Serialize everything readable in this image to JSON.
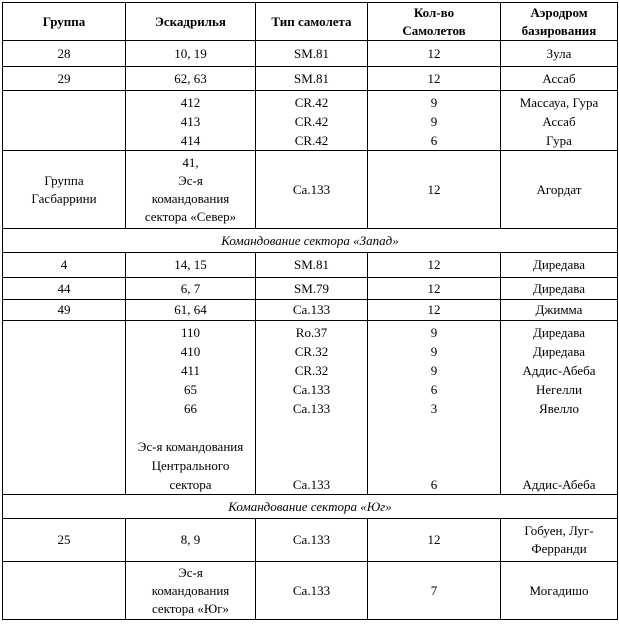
{
  "headers": [
    "Группа",
    "Эскадрилья",
    "Тип самолета",
    "Кол-во\nСамолетов",
    "Аэродром\nбазирования"
  ],
  "rows": [
    {
      "type": "data",
      "h": 26,
      "cells": [
        [
          "28"
        ],
        [
          "10, 19"
        ],
        [
          "SM.81"
        ],
        [
          "12"
        ],
        [
          "Зула"
        ]
      ]
    },
    {
      "type": "data",
      "h": 24,
      "cells": [
        [
          "29"
        ],
        [
          "62, 63"
        ],
        [
          "SM.81"
        ],
        [
          "12"
        ],
        [
          "Ассаб"
        ]
      ]
    },
    {
      "type": "block",
      "h": 60,
      "cells": [
        [
          ""
        ],
        [
          "412",
          "413",
          "414"
        ],
        [
          "CR.42",
          "CR.42",
          "CR.42"
        ],
        [
          "9",
          "9",
          "6"
        ],
        [
          "Массауа, Гура",
          "Ассаб",
          "Гура"
        ]
      ]
    },
    {
      "type": "data",
      "h": 78,
      "cells": [
        [
          "Группа",
          "Гасбаррини"
        ],
        [
          "41,",
          "Эс-я",
          "командования",
          "сектора «Север»"
        ],
        [
          "Ca.133"
        ],
        [
          "12"
        ],
        [
          "Агордат"
        ]
      ]
    },
    {
      "type": "section",
      "text": "Командование сектора «Запад»"
    },
    {
      "type": "data",
      "h": 25,
      "cells": [
        [
          "4"
        ],
        [
          "14, 15"
        ],
        [
          "SM.81"
        ],
        [
          "12"
        ],
        [
          "Диредава"
        ]
      ]
    },
    {
      "type": "data",
      "h": 22,
      "cells": [
        [
          "44"
        ],
        [
          "6, 7"
        ],
        [
          "SM.79"
        ],
        [
          "12"
        ],
        [
          "Диредава"
        ]
      ]
    },
    {
      "type": "data",
      "h": 21,
      "cells": [
        [
          "49"
        ],
        [
          "61, 64"
        ],
        [
          "Ca.133"
        ],
        [
          "12"
        ],
        [
          "Джимма"
        ]
      ]
    },
    {
      "type": "block",
      "h": 170,
      "cells": [
        [
          ""
        ],
        [
          "110",
          "410",
          "411",
          "65",
          "66",
          "",
          "Эс-я командования",
          "Центрального",
          "сектора"
        ],
        [
          "Ro.37",
          "CR.32",
          "CR.32",
          "Ca.133",
          "Ca.133",
          "",
          "",
          "",
          "Ca.133"
        ],
        [
          "9",
          "9",
          "9",
          "6",
          "3",
          "",
          "",
          "",
          "6"
        ],
        [
          "Диредава",
          "Диредава",
          "Аддис-Абеба",
          "Негелли",
          "Явелло",
          "",
          "",
          "",
          "Аддис-Абеба"
        ]
      ]
    },
    {
      "type": "section",
      "text": "Командование сектора «Юг»"
    },
    {
      "type": "data",
      "h": 43,
      "cells": [
        [
          "25"
        ],
        [
          "8, 9"
        ],
        [
          "Ca.133"
        ],
        [
          "12"
        ],
        [
          "Гобуен, Луг-",
          "Ферранди"
        ]
      ]
    },
    {
      "type": "data",
      "h": 58,
      "cells": [
        [
          ""
        ],
        [
          "Эс-я",
          "командования",
          "сектора «Юг»"
        ],
        [
          "Ca.133"
        ],
        [
          "7"
        ],
        [
          "Могадишо"
        ]
      ]
    }
  ]
}
